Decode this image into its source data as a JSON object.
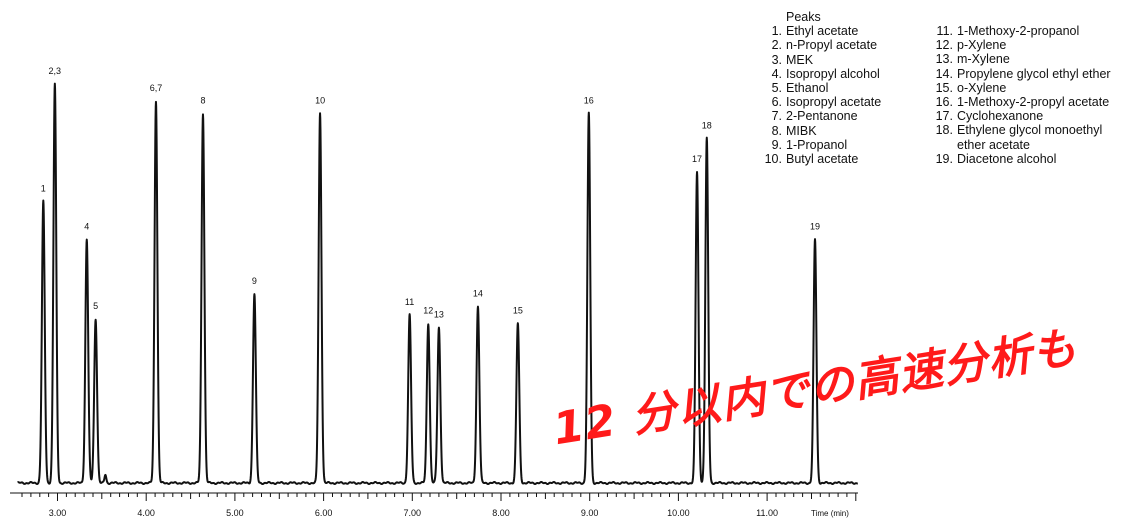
{
  "chart_data": {
    "type": "line",
    "xlabel": "Time (min)",
    "ylabel": "",
    "xlim": [
      2.55,
      12.3
    ],
    "ylim": [
      0,
      100
    ],
    "x_ticks": [
      "3.00",
      "4.00",
      "5.00",
      "6.00",
      "7.00",
      "8.00",
      "9.00",
      "10.00",
      "11.00"
    ],
    "grid": false,
    "peaks": [
      {
        "label": "1",
        "rt": 2.84,
        "height": 67
      },
      {
        "label": "2,3",
        "rt": 2.97,
        "height": 95
      },
      {
        "label": "4",
        "rt": 3.33,
        "height": 58
      },
      {
        "label": "5",
        "rt": 3.43,
        "height": 39
      },
      {
        "label": "",
        "rt": 3.54,
        "height": 2
      },
      {
        "label": "6,7",
        "rt": 4.11,
        "height": 91
      },
      {
        "label": "8",
        "rt": 4.64,
        "height": 88
      },
      {
        "label": "9",
        "rt": 5.22,
        "height": 45
      },
      {
        "label": "10",
        "rt": 5.96,
        "height": 88
      },
      {
        "label": "11",
        "rt": 6.97,
        "height": 40
      },
      {
        "label": "12",
        "rt": 7.18,
        "height": 38
      },
      {
        "label": "13",
        "rt": 7.3,
        "height": 37
      },
      {
        "label": "14",
        "rt": 7.74,
        "height": 42
      },
      {
        "label": "15",
        "rt": 8.19,
        "height": 38
      },
      {
        "label": "16",
        "rt": 8.99,
        "height": 88
      },
      {
        "label": "17",
        "rt": 10.21,
        "height": 74
      },
      {
        "label": "18",
        "rt": 10.32,
        "height": 82
      },
      {
        "label": "19",
        "rt": 11.54,
        "height": 58
      }
    ]
  },
  "legend": {
    "title": "Peaks",
    "left": [
      {
        "num": "1.",
        "name": "Ethyl acetate"
      },
      {
        "num": "2.",
        "name": "n-Propyl acetate"
      },
      {
        "num": "3.",
        "name": "MEK"
      },
      {
        "num": "4.",
        "name": "Isopropyl alcohol"
      },
      {
        "num": "5.",
        "name": "Ethanol"
      },
      {
        "num": "6.",
        "name": "Isopropyl acetate"
      },
      {
        "num": "7.",
        "name": "2-Pentanone"
      },
      {
        "num": "8.",
        "name": "MIBK"
      },
      {
        "num": "9.",
        "name": "1-Propanol"
      },
      {
        "num": "10.",
        "name": "Butyl acetate"
      }
    ],
    "right": [
      {
        "num": "11.",
        "name": "1-Methoxy-2-propanol"
      },
      {
        "num": "12.",
        "name": "p-Xylene"
      },
      {
        "num": "13.",
        "name": "m-Xylene"
      },
      {
        "num": "14.",
        "name": "Propylene glycol ethyl ether"
      },
      {
        "num": "15.",
        "name": "o-Xylene"
      },
      {
        "num": "16.",
        "name": "1-Methoxy-2-propyl acetate"
      },
      {
        "num": "17.",
        "name": "Cyclohexanone"
      },
      {
        "num": "18.",
        "name": "Ethylene glycol monoethyl ether acetate"
      },
      {
        "num": "19.",
        "name": "Diacetone alcohol"
      }
    ]
  },
  "overlay_text": "12 分以内での高速分析も",
  "colors": {
    "trace": "#111111",
    "overlay": "#ff1a1a"
  }
}
